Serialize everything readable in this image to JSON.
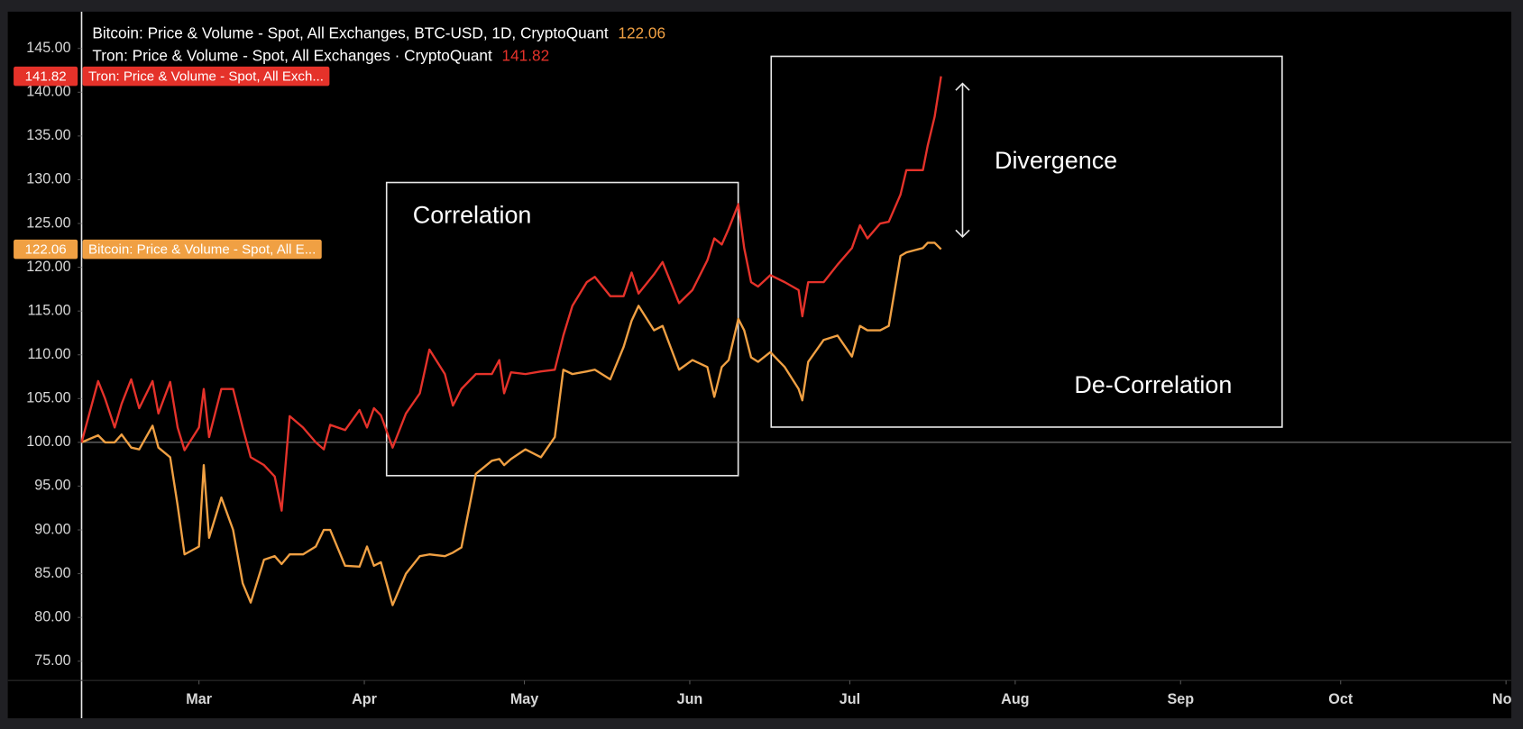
{
  "chart_data": {
    "type": "line",
    "x": [
      39.0,
      42.1,
      43.4,
      45.2,
      46.5,
      48.3,
      49.8,
      52.3,
      53.4,
      55.6,
      57.0,
      58.3,
      61.0,
      61.9,
      62.9,
      65.2,
      67.4,
      69.2,
      70.7,
      73.2,
      75.2,
      76.5,
      78.0,
      80.5,
      82.9,
      84.4,
      85.6,
      88.4,
      91.1,
      92.5,
      93.8,
      95.1,
      97.3,
      99.8,
      102.4,
      104.2,
      107.1,
      108.6,
      110.2,
      112.9,
      115.9,
      117.3,
      118.2,
      119.5,
      122.2,
      125.1,
      127.7,
      129.3,
      131.0,
      133.7,
      135.2,
      138.1,
      140.6,
      142.1,
      143.4,
      146.3,
      147.9,
      151.0,
      153.5,
      156.3,
      157.6,
      159.0,
      160.3,
      162.1,
      163.2,
      164.5,
      165.8,
      168.1,
      170.8,
      173.4,
      174.1,
      175.2,
      178.1,
      180.7,
      183.4,
      184.9,
      186.3,
      188.7,
      190.3,
      192.5,
      193.6,
      196.7,
      197.6,
      198.9,
      200.1
    ],
    "series": [
      {
        "name": "Bitcoin: Price & Volume - Spot, All Exchanges, BTC-USD, 1D, CryptoQuant",
        "tag_label": "Bitcoin: Price & Volume - Spot, All E...",
        "color": "#f0a043",
        "values": [
          100.0,
          100.8,
          100.0,
          100.0,
          100.9,
          99.4,
          99.2,
          101.9,
          99.4,
          98.3,
          92.8,
          87.2,
          88.1,
          97.4,
          89.1,
          93.7,
          90.0,
          83.9,
          81.7,
          86.6,
          87.0,
          86.1,
          87.2,
          87.2,
          88.1,
          90.0,
          90.0,
          85.9,
          85.8,
          88.1,
          85.9,
          86.3,
          81.4,
          85.0,
          87.0,
          87.2,
          87.0,
          87.4,
          88.0,
          96.4,
          97.9,
          98.1,
          97.4,
          98.1,
          99.2,
          98.3,
          100.6,
          108.3,
          107.8,
          108.1,
          108.3,
          107.2,
          110.9,
          113.9,
          115.6,
          112.8,
          113.3,
          108.3,
          109.4,
          108.6,
          105.2,
          108.6,
          109.4,
          114.1,
          112.8,
          109.7,
          109.2,
          110.3,
          108.6,
          106.1,
          104.8,
          109.2,
          111.7,
          112.2,
          109.8,
          113.3,
          112.8,
          112.8,
          113.3,
          121.3,
          121.7,
          122.2,
          122.8,
          122.8,
          122.06
        ]
      },
      {
        "name": "Tron: Price & Volume - Spot, All Exchanges · CryptoQuant",
        "tag_label": "Tron: Price & Volume - Spot, All Exch...",
        "color": "#e5322a",
        "values": [
          100.0,
          107.0,
          105.0,
          101.7,
          104.4,
          107.2,
          103.9,
          107.0,
          103.3,
          106.9,
          101.7,
          99.1,
          101.7,
          106.1,
          100.6,
          106.1,
          106.1,
          101.7,
          98.3,
          97.4,
          96.1,
          92.2,
          103.0,
          101.7,
          100.0,
          99.2,
          102.0,
          101.4,
          103.7,
          101.7,
          103.9,
          103.1,
          99.4,
          103.3,
          105.6,
          110.6,
          107.8,
          104.2,
          106.1,
          107.8,
          107.8,
          109.4,
          105.6,
          108.0,
          107.8,
          108.1,
          108.3,
          112.2,
          115.6,
          118.3,
          118.9,
          116.7,
          116.7,
          119.4,
          117.0,
          119.2,
          120.6,
          115.9,
          117.4,
          120.8,
          123.3,
          122.6,
          124.4,
          127.2,
          122.2,
          118.3,
          117.8,
          119.1,
          118.3,
          117.4,
          114.4,
          118.3,
          118.3,
          120.3,
          122.2,
          124.8,
          123.3,
          125.0,
          125.2,
          128.3,
          131.1,
          131.1,
          133.9,
          137.2,
          141.82
        ]
      }
    ],
    "xlim": [
      39,
      307
    ],
    "xticks": [
      {
        "value": 61,
        "label": "Mar"
      },
      {
        "value": 92,
        "label": "Apr"
      },
      {
        "value": 122,
        "label": "May"
      },
      {
        "value": 153,
        "label": "Jun"
      },
      {
        "value": 183,
        "label": "Jul"
      },
      {
        "value": 214,
        "label": "Aug"
      },
      {
        "value": 245,
        "label": "Sep"
      },
      {
        "value": 275,
        "label": "Oct"
      },
      {
        "value": 306,
        "label": "Nov"
      }
    ],
    "ylim": [
      72.8,
      149.2
    ],
    "yticks": [
      {
        "value": 75,
        "label": "75.00"
      },
      {
        "value": 80,
        "label": "80.00"
      },
      {
        "value": 85,
        "label": "85.00"
      },
      {
        "value": 90,
        "label": "90.00"
      },
      {
        "value": 95,
        "label": "95.00"
      },
      {
        "value": 100,
        "label": "100.00"
      },
      {
        "value": 105,
        "label": "105.00"
      },
      {
        "value": 110,
        "label": "110.00"
      },
      {
        "value": 115,
        "label": "115.00"
      },
      {
        "value": 120,
        "label": "120.00"
      },
      {
        "value": 125,
        "label": "125.00"
      },
      {
        "value": 130,
        "label": "130.00"
      },
      {
        "value": 135,
        "label": "135.00"
      },
      {
        "value": 140,
        "label": "140.00"
      },
      {
        "value": 145,
        "label": "145.00"
      }
    ],
    "reference_line": 100,
    "grid": false,
    "annotations": [
      "Correlation",
      "Divergence",
      "De-Correlation"
    ]
  }
}
